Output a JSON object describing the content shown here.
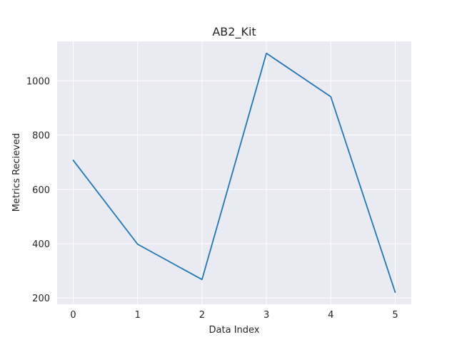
{
  "chart_data": {
    "type": "line",
    "title": "AB2_Kit",
    "xlabel": "Data Index",
    "ylabel": "Metrics Recieved",
    "x": [
      0,
      1,
      2,
      3,
      4,
      5
    ],
    "series": [
      {
        "values": [
          707,
          398,
          268,
          1101,
          941,
          221
        ]
      }
    ],
    "xlim": [
      -0.25,
      5.25
    ],
    "ylim": [
      177,
      1145
    ],
    "xticks": [
      "0",
      "1",
      "2",
      "3",
      "4",
      "5"
    ],
    "yticks": [
      "200",
      "400",
      "600",
      "800",
      "1000"
    ],
    "grid": true,
    "colors": {
      "plot_bg": "#eaeaf2",
      "grid": "#ffffff",
      "line": "#1f77b4"
    }
  }
}
